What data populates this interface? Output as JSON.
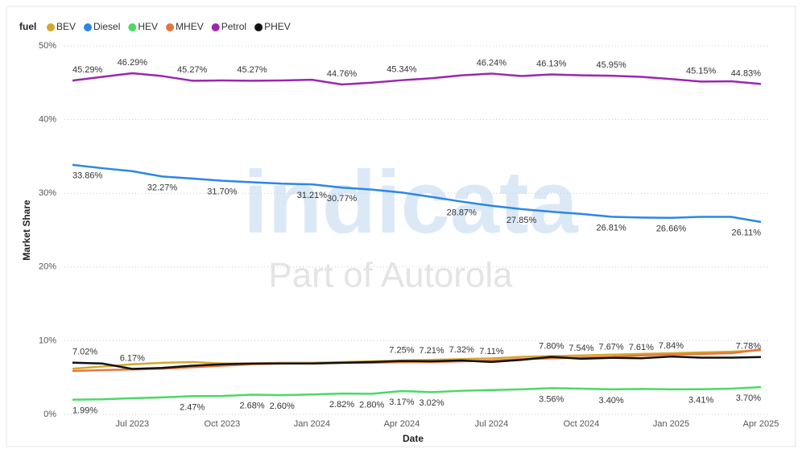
{
  "chart_data": {
    "type": "line",
    "legend_title": "fuel",
    "legend_position": "top-left",
    "x_label": "Date",
    "y_label": "Market Share",
    "watermark": [
      "indicata",
      "Part of Autorola"
    ],
    "grid": true,
    "x": [
      "2023-05",
      "2023-06",
      "2023-07",
      "2023-08",
      "2023-09",
      "2023-10",
      "2023-11",
      "2023-12",
      "2024-01",
      "2024-02",
      "2024-03",
      "2024-04",
      "2024-05",
      "2024-06",
      "2024-07",
      "2024-08",
      "2024-09",
      "2024-10",
      "2024-11",
      "2024-12",
      "2025-01",
      "2025-02",
      "2025-03",
      "2025-04"
    ],
    "xlim": [
      "2023-05",
      "2025-04"
    ],
    "xticks": [
      {
        "value": "2023-07",
        "label": "Jul 2023"
      },
      {
        "value": "2023-10",
        "label": "Oct 2023"
      },
      {
        "value": "2024-01",
        "label": "Jan 2024"
      },
      {
        "value": "2024-04",
        "label": "Apr 2024"
      },
      {
        "value": "2024-07",
        "label": "Jul 2024"
      },
      {
        "value": "2024-10",
        "label": "Oct 2024"
      },
      {
        "value": "2025-01",
        "label": "Jan 2025"
      },
      {
        "value": "2025-04",
        "label": "Apr 2025"
      }
    ],
    "ylim": [
      0,
      50
    ],
    "yticks": [
      {
        "value": 0,
        "label": "0%"
      },
      {
        "value": 10,
        "label": "10%"
      },
      {
        "value": 20,
        "label": "20%"
      },
      {
        "value": 30,
        "label": "30%"
      },
      {
        "value": 40,
        "label": "40%"
      },
      {
        "value": 50,
        "label": "50%"
      }
    ],
    "series": [
      {
        "name": "BEV",
        "color": "#d4a72c",
        "values": [
          6.2,
          6.5,
          6.8,
          7.0,
          7.1,
          6.9,
          6.9,
          7.0,
          7.0,
          7.1,
          7.2,
          7.3,
          7.4,
          7.5,
          7.6,
          7.8,
          7.9,
          8.0,
          8.1,
          8.2,
          8.3,
          8.4,
          8.5,
          8.7
        ]
      },
      {
        "name": "Diesel",
        "color": "#2b87e8",
        "values": [
          33.86,
          33.4,
          33.0,
          32.27,
          32.0,
          31.7,
          31.5,
          31.3,
          31.21,
          30.77,
          30.5,
          30.1,
          29.5,
          28.87,
          28.3,
          27.85,
          27.5,
          27.2,
          26.81,
          26.7,
          26.66,
          26.8,
          26.8,
          26.11
        ],
        "value_labels": [
          "33.86%",
          null,
          null,
          "32.27%",
          null,
          "31.70%",
          null,
          null,
          "31.21%",
          "30.77%",
          null,
          null,
          null,
          "28.87%",
          null,
          "27.85%",
          null,
          null,
          "26.81%",
          null,
          "26.66%",
          null,
          null,
          "26.11%"
        ]
      },
      {
        "name": "HEV",
        "color": "#4cd964",
        "values": [
          1.99,
          2.05,
          2.2,
          2.3,
          2.47,
          2.5,
          2.68,
          2.6,
          2.7,
          2.82,
          2.8,
          3.17,
          3.02,
          3.2,
          3.3,
          3.4,
          3.56,
          3.5,
          3.4,
          3.45,
          3.4,
          3.41,
          3.5,
          3.7
        ],
        "value_labels": [
          "1.99%",
          null,
          null,
          null,
          "2.47%",
          null,
          "2.68%",
          "2.60%",
          null,
          "2.82%",
          "2.80%",
          "3.17%",
          "3.02%",
          null,
          null,
          null,
          "3.56%",
          null,
          "3.40%",
          null,
          null,
          "3.41%",
          null,
          "3.70%"
        ]
      },
      {
        "name": "MHEV",
        "color": "#e8743b",
        "values": [
          5.9,
          6.0,
          6.1,
          6.2,
          6.4,
          6.6,
          6.8,
          6.9,
          6.9,
          7.0,
          7.0,
          7.1,
          7.1,
          7.2,
          7.3,
          7.5,
          7.6,
          7.7,
          7.8,
          8.0,
          8.1,
          8.2,
          8.3,
          8.8
        ]
      },
      {
        "name": "Petrol",
        "color": "#9b27b0",
        "values": [
          45.29,
          45.8,
          46.29,
          45.9,
          45.27,
          45.3,
          45.27,
          45.3,
          45.4,
          44.76,
          45.0,
          45.34,
          45.6,
          46.0,
          46.24,
          45.9,
          46.13,
          46.0,
          45.95,
          45.8,
          45.5,
          45.15,
          45.2,
          44.83
        ],
        "value_labels": [
          "45.29%",
          null,
          "46.29%",
          null,
          "45.27%",
          null,
          "45.27%",
          null,
          null,
          "44.76%",
          null,
          "45.34%",
          null,
          null,
          "46.24%",
          null,
          "46.13%",
          null,
          "45.95%",
          null,
          null,
          "45.15%",
          null,
          "44.83%"
        ]
      },
      {
        "name": "PHEV",
        "color": "#111111",
        "values": [
          7.02,
          6.9,
          6.17,
          6.3,
          6.6,
          6.8,
          6.9,
          6.9,
          6.9,
          7.0,
          7.1,
          7.25,
          7.21,
          7.32,
          7.11,
          7.4,
          7.8,
          7.54,
          7.67,
          7.61,
          7.84,
          7.7,
          7.7,
          7.78
        ],
        "value_labels": [
          "7.02%",
          null,
          "6.17%",
          null,
          null,
          null,
          null,
          null,
          null,
          null,
          null,
          "7.25%",
          "7.21%",
          "7.32%",
          "7.11%",
          null,
          "7.80%",
          "7.54%",
          "7.67%",
          "7.61%",
          "7.84%",
          null,
          null,
          "7.78%"
        ]
      }
    ]
  }
}
